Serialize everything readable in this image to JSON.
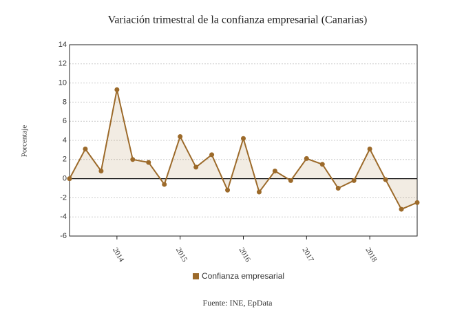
{
  "chart_data": {
    "type": "line",
    "title": "Variación trimestral de la confianza empresarial (Canarias)",
    "y_label": "Porcentaje",
    "source": "Fuente: INE, EpData",
    "categories": [
      null,
      null,
      null,
      "2014",
      null,
      null,
      null,
      "2015",
      null,
      null,
      null,
      "2016",
      null,
      null,
      null,
      "2017",
      null,
      null,
      null,
      "2018",
      null,
      null,
      null
    ],
    "series": [
      {
        "name": "Confianza empresarial",
        "color": "#9c6a2a",
        "values": [
          0,
          3.1,
          0.8,
          9.3,
          2.0,
          1.7,
          -0.6,
          4.4,
          1.2,
          2.5,
          -1.2,
          4.2,
          -1.4,
          0.8,
          -0.2,
          2.1,
          1.5,
          -1.0,
          -0.2,
          3.1,
          -0.1,
          -3.2,
          -2.5
        ]
      }
    ],
    "ylim": [
      -6,
      14
    ],
    "yticks": [
      -6,
      -4,
      -2,
      0,
      2,
      4,
      6,
      8,
      10,
      12,
      14
    ],
    "grid": true,
    "legend": "bottom"
  }
}
